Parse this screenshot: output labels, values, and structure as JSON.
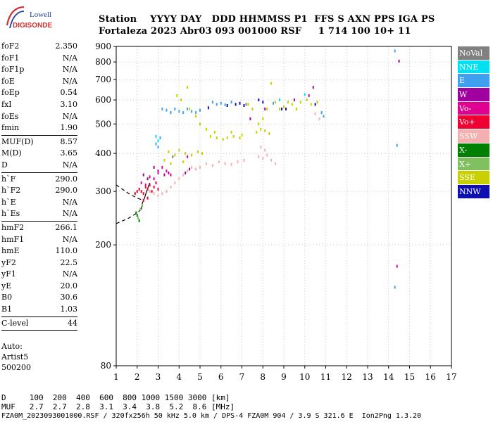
{
  "logo": {
    "line1": "Lowell",
    "line2": "DIGISONDE"
  },
  "header": {
    "line1": "Station    YYYY DAY   DDD HHMMSS P1  FFS S AXN PPS IGA PS",
    "line2": "Fortaleza 2023 Abr03 093 001000 RSF     1 714 100 10+ 11"
  },
  "params": {
    "group1": [
      {
        "name": "foF2",
        "value": "2.350"
      },
      {
        "name": "foF1",
        "value": "N/A"
      },
      {
        "name": "foF1p",
        "value": "N/A"
      },
      {
        "name": "foE",
        "value": "N/A"
      },
      {
        "name": "foEp",
        "value": "0.54"
      },
      {
        "name": "fxI",
        "value": "3.10"
      },
      {
        "name": "foEs",
        "value": "N/A"
      },
      {
        "name": "fmin",
        "value": "1.90"
      }
    ],
    "group2": [
      {
        "name": "MUF(D)",
        "value": "8.57"
      },
      {
        "name": "M(D)",
        "value": "3.65"
      },
      {
        "name": "D",
        "value": "N/A"
      }
    ],
    "group3": [
      {
        "name": "h`F",
        "value": "290.0"
      },
      {
        "name": "h`F2",
        "value": "290.0"
      },
      {
        "name": "h`E",
        "value": "N/A"
      },
      {
        "name": "h`Es",
        "value": "N/A"
      }
    ],
    "group4": [
      {
        "name": "hmF2",
        "value": "266.1"
      },
      {
        "name": "hmF1",
        "value": "N/A"
      },
      {
        "name": "hmE",
        "value": "110.0"
      },
      {
        "name": "yF2",
        "value": "22.5"
      },
      {
        "name": "yF1",
        "value": "N/A"
      },
      {
        "name": "yE",
        "value": "20.0"
      },
      {
        "name": "B0",
        "value": "30.6"
      },
      {
        "name": "B1",
        "value": "1.03"
      }
    ],
    "group5": [
      {
        "name": "C-level",
        "value": "44"
      }
    ]
  },
  "auto": {
    "line1": "Auto:",
    "line2": "Artist5",
    "line3": "500200"
  },
  "legend": [
    {
      "label": "NoVal",
      "color": "#808080"
    },
    {
      "label": "NNE",
      "color": "#00e0f0"
    },
    {
      "label": "E",
      "color": "#40a0f0"
    },
    {
      "label": "W",
      "color": "#a000a0"
    },
    {
      "label": "Vo-",
      "color": "#e00090"
    },
    {
      "label": "Vo+",
      "color": "#f00030"
    },
    {
      "label": "SSW",
      "color": "#f4b0b0"
    },
    {
      "label": "X-",
      "color": "#008000"
    },
    {
      "label": "X+",
      "color": "#80c060"
    },
    {
      "label": "SSE",
      "color": "#c8d000"
    },
    {
      "label": "NNW",
      "color": "#1010b0"
    }
  ],
  "footer": {
    "line1": "D     100  200  400  600  800 1000 1500 3000 [km]",
    "line2": "MUF   2.7  2.7  2.8  3.1  3.4  3.8  5.2  8.6 [MHz]",
    "line3": "FZA0M_2023093001000.RSF / 320fx256h 50 kHz 5.0 km / DPS-4 FZA0M 904 / 3.9 S 321.6 E  Ion2Png 1.3.20"
  },
  "chart_data": {
    "type": "scatter",
    "title": "",
    "xlabel": "",
    "ylabel": "",
    "xlim": [
      1,
      17
    ],
    "ylim": [
      80,
      900
    ],
    "y_scale": "log",
    "grid": true,
    "x_ticks": [
      1,
      2,
      3,
      4,
      5,
      6,
      7,
      8,
      9,
      10,
      11,
      12,
      13,
      14,
      15,
      16,
      17
    ],
    "y_ticks": [
      80,
      200,
      300,
      400,
      500,
      600,
      700,
      800,
      900
    ],
    "series": [
      {
        "name": "SSE",
        "color": "#c8d000",
        "points": [
          [
            3.5,
            405
          ],
          [
            3.8,
            395
          ],
          [
            4.0,
            410
          ],
          [
            4.3,
            400
          ],
          [
            4.6,
            395
          ],
          [
            4.9,
            405
          ],
          [
            5.1,
            400
          ],
          [
            3.3,
            380
          ],
          [
            3.6,
            370
          ],
          [
            4.2,
            375
          ],
          [
            5.5,
            455
          ],
          [
            5.8,
            450
          ],
          [
            6.1,
            445
          ],
          [
            6.3,
            450
          ],
          [
            6.6,
            455
          ],
          [
            6.9,
            450
          ],
          [
            7.0,
            460
          ],
          [
            5.7,
            470
          ],
          [
            6.5,
            470
          ],
          [
            5.3,
            480
          ],
          [
            7.7,
            470
          ],
          [
            7.9,
            480
          ],
          [
            8.1,
            475
          ],
          [
            8.3,
            465
          ],
          [
            7.8,
            500
          ],
          [
            8.0,
            520
          ],
          [
            8.2,
            560
          ],
          [
            8.6,
            590
          ],
          [
            8.8,
            560
          ],
          [
            9.0,
            570
          ],
          [
            9.2,
            590
          ],
          [
            9.4,
            580
          ],
          [
            9.6,
            560
          ],
          [
            9.8,
            590
          ],
          [
            10.1,
            600
          ],
          [
            10.3,
            580
          ],
          [
            10.6,
            590
          ],
          [
            4.5,
            560
          ],
          [
            4.8,
            530
          ],
          [
            5.0,
            500
          ],
          [
            3.9,
            620
          ],
          [
            4.1,
            600
          ],
          [
            7.3,
            580
          ],
          [
            7.5,
            560
          ],
          [
            8.4,
            680
          ],
          [
            4.4,
            660
          ]
        ]
      },
      {
        "name": "SSW",
        "color": "#f4b0b0",
        "points": [
          [
            2.6,
            300
          ],
          [
            2.8,
            295
          ],
          [
            3.0,
            290
          ],
          [
            3.2,
            295
          ],
          [
            3.4,
            300
          ],
          [
            3.6,
            310
          ],
          [
            3.8,
            320
          ],
          [
            4.0,
            330
          ],
          [
            4.2,
            340
          ],
          [
            4.4,
            350
          ],
          [
            4.6,
            360
          ],
          [
            4.8,
            355
          ],
          [
            5.0,
            360
          ],
          [
            5.3,
            370
          ],
          [
            5.6,
            365
          ],
          [
            5.9,
            375
          ],
          [
            6.2,
            370
          ],
          [
            6.5,
            368
          ],
          [
            6.8,
            375
          ],
          [
            7.1,
            380
          ],
          [
            7.8,
            390
          ],
          [
            8.0,
            385
          ],
          [
            8.2,
            395
          ],
          [
            8.4,
            380
          ],
          [
            8.6,
            370
          ],
          [
            8.1,
            410
          ],
          [
            7.9,
            420
          ],
          [
            10.5,
            540
          ],
          [
            10.7,
            520
          ]
        ]
      },
      {
        "name": "E",
        "color": "#40a0f0",
        "points": [
          [
            3.2,
            560
          ],
          [
            3.4,
            555
          ],
          [
            3.6,
            545
          ],
          [
            3.8,
            560
          ],
          [
            4.0,
            550
          ],
          [
            4.2,
            545
          ],
          [
            4.4,
            560
          ],
          [
            4.6,
            550
          ],
          [
            4.8,
            545
          ],
          [
            5.0,
            555
          ],
          [
            5.6,
            590
          ],
          [
            5.8,
            580
          ],
          [
            6.0,
            585
          ],
          [
            6.2,
            578
          ],
          [
            6.5,
            590
          ],
          [
            2.9,
            430
          ],
          [
            3.0,
            420
          ],
          [
            3.1,
            450
          ],
          [
            14.3,
            870
          ],
          [
            14.4,
            425
          ],
          [
            14.3,
            145
          ],
          [
            10.9,
            530
          ],
          [
            10.8,
            545
          ],
          [
            8.5,
            585
          ]
        ]
      },
      {
        "name": "NNW",
        "color": "#1010b0",
        "points": [
          [
            6.7,
            580
          ],
          [
            6.9,
            585
          ],
          [
            7.1,
            575
          ],
          [
            7.8,
            600
          ],
          [
            8.0,
            590
          ],
          [
            8.9,
            560
          ],
          [
            9.1,
            560
          ],
          [
            10.5,
            580
          ],
          [
            5.4,
            565
          ],
          [
            6.3,
            575
          ]
        ]
      },
      {
        "name": "W",
        "color": "#a000a0",
        "points": [
          [
            2.3,
            340
          ],
          [
            2.5,
            330
          ],
          [
            2.8,
            360
          ],
          [
            3.0,
            350
          ],
          [
            3.3,
            340
          ],
          [
            3.5,
            345
          ],
          [
            4.3,
            345
          ],
          [
            4.5,
            355
          ],
          [
            14.5,
            805
          ],
          [
            10.4,
            660
          ],
          [
            8.1,
            560
          ],
          [
            7.4,
            520
          ],
          [
            9.5,
            600
          ]
        ]
      },
      {
        "name": "Vo-",
        "color": "#e00090",
        "points": [
          [
            2.2,
            320
          ],
          [
            2.4,
            315
          ],
          [
            2.6,
            335
          ],
          [
            2.8,
            330
          ],
          [
            3.0,
            345
          ],
          [
            3.2,
            360
          ],
          [
            3.4,
            350
          ],
          [
            3.6,
            340
          ],
          [
            4.4,
            390
          ],
          [
            10.2,
            620
          ],
          [
            14.4,
            170
          ]
        ]
      },
      {
        "name": "Vo+",
        "color": "#f00030",
        "points": [
          [
            1.9,
            295
          ],
          [
            2.0,
            300
          ],
          [
            2.1,
            305
          ],
          [
            2.2,
            300
          ],
          [
            2.3,
            295
          ],
          [
            2.4,
            310
          ],
          [
            2.5,
            305
          ],
          [
            2.6,
            315
          ],
          [
            2.7,
            300
          ],
          [
            2.8,
            310
          ],
          [
            2.9,
            320
          ],
          [
            3.0,
            305
          ],
          [
            2.5,
            285
          ],
          [
            2.3,
            280
          ]
        ]
      },
      {
        "name": "X-",
        "color": "#008000",
        "points": [
          [
            2.0,
            250
          ],
          [
            2.1,
            240
          ],
          [
            1.95,
            255
          ]
        ]
      },
      {
        "name": "X+",
        "color": "#80c060",
        "points": [
          [
            2.05,
            245
          ],
          [
            2.15,
            262
          ],
          [
            2.25,
            270
          ]
        ]
      },
      {
        "name": "NNE",
        "color": "#00e0f0",
        "points": [
          [
            2.9,
            455
          ],
          [
            3.0,
            440
          ],
          [
            10.0,
            625
          ],
          [
            8.8,
            600
          ]
        ]
      },
      {
        "name": "NoVal",
        "color": "#808080",
        "points": [
          [
            3.7,
            390
          ],
          [
            7.2,
            580
          ]
        ]
      }
    ],
    "traces": [
      {
        "style": "dashed",
        "points": [
          [
            1.0,
            315
          ],
          [
            1.6,
            295
          ],
          [
            2.0,
            285
          ],
          [
            2.2,
            282
          ]
        ]
      },
      {
        "style": "dashed",
        "points": [
          [
            1.0,
            235
          ],
          [
            1.6,
            245
          ],
          [
            2.0,
            255
          ],
          [
            2.2,
            262
          ]
        ]
      },
      {
        "style": "solid",
        "points": [
          [
            2.2,
            262
          ],
          [
            2.25,
            275
          ],
          [
            2.35,
            285
          ],
          [
            2.45,
            300
          ],
          [
            2.6,
            320
          ]
        ]
      }
    ]
  }
}
